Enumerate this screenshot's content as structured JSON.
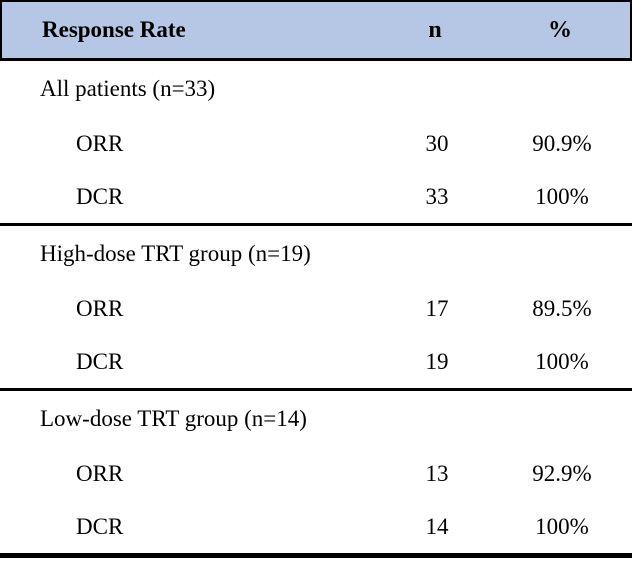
{
  "colors": {
    "header_bg": "#b5c7e4",
    "rule": "#000000"
  },
  "table": {
    "headers": {
      "label": "Response Rate",
      "n": "n",
      "pct": "%"
    },
    "sections": [
      {
        "title": "All patients (n=33)",
        "rows": [
          {
            "label": "ORR",
            "n": "30",
            "pct": "90.9%"
          },
          {
            "label": "DCR",
            "n": "33",
            "pct": "100%"
          }
        ]
      },
      {
        "title": "High-dose TRT group (n=19)",
        "rows": [
          {
            "label": "ORR",
            "n": "17",
            "pct": "89.5%"
          },
          {
            "label": "DCR",
            "n": "19",
            "pct": "100%"
          }
        ]
      },
      {
        "title": "Low-dose TRT group (n=14)",
        "rows": [
          {
            "label": "ORR",
            "n": "13",
            "pct": "92.9%"
          },
          {
            "label": "DCR",
            "n": "14",
            "pct": "100%"
          }
        ]
      }
    ]
  },
  "chart_data": {
    "type": "table",
    "title": "Response Rate",
    "columns": [
      "Response Rate",
      "n",
      "%"
    ],
    "rows": [
      {
        "group": "All patients",
        "group_n": 33,
        "measure": "ORR",
        "n": 30,
        "pct": 90.9
      },
      {
        "group": "All patients",
        "group_n": 33,
        "measure": "DCR",
        "n": 33,
        "pct": 100
      },
      {
        "group": "High-dose TRT group",
        "group_n": 19,
        "measure": "ORR",
        "n": 17,
        "pct": 89.5
      },
      {
        "group": "High-dose TRT group",
        "group_n": 19,
        "measure": "DCR",
        "n": 19,
        "pct": 100
      },
      {
        "group": "Low-dose TRT group",
        "group_n": 14,
        "measure": "ORR",
        "n": 13,
        "pct": 92.9
      },
      {
        "group": "Low-dose TRT group",
        "group_n": 14,
        "measure": "DCR",
        "n": 14,
        "pct": 100
      }
    ]
  }
}
